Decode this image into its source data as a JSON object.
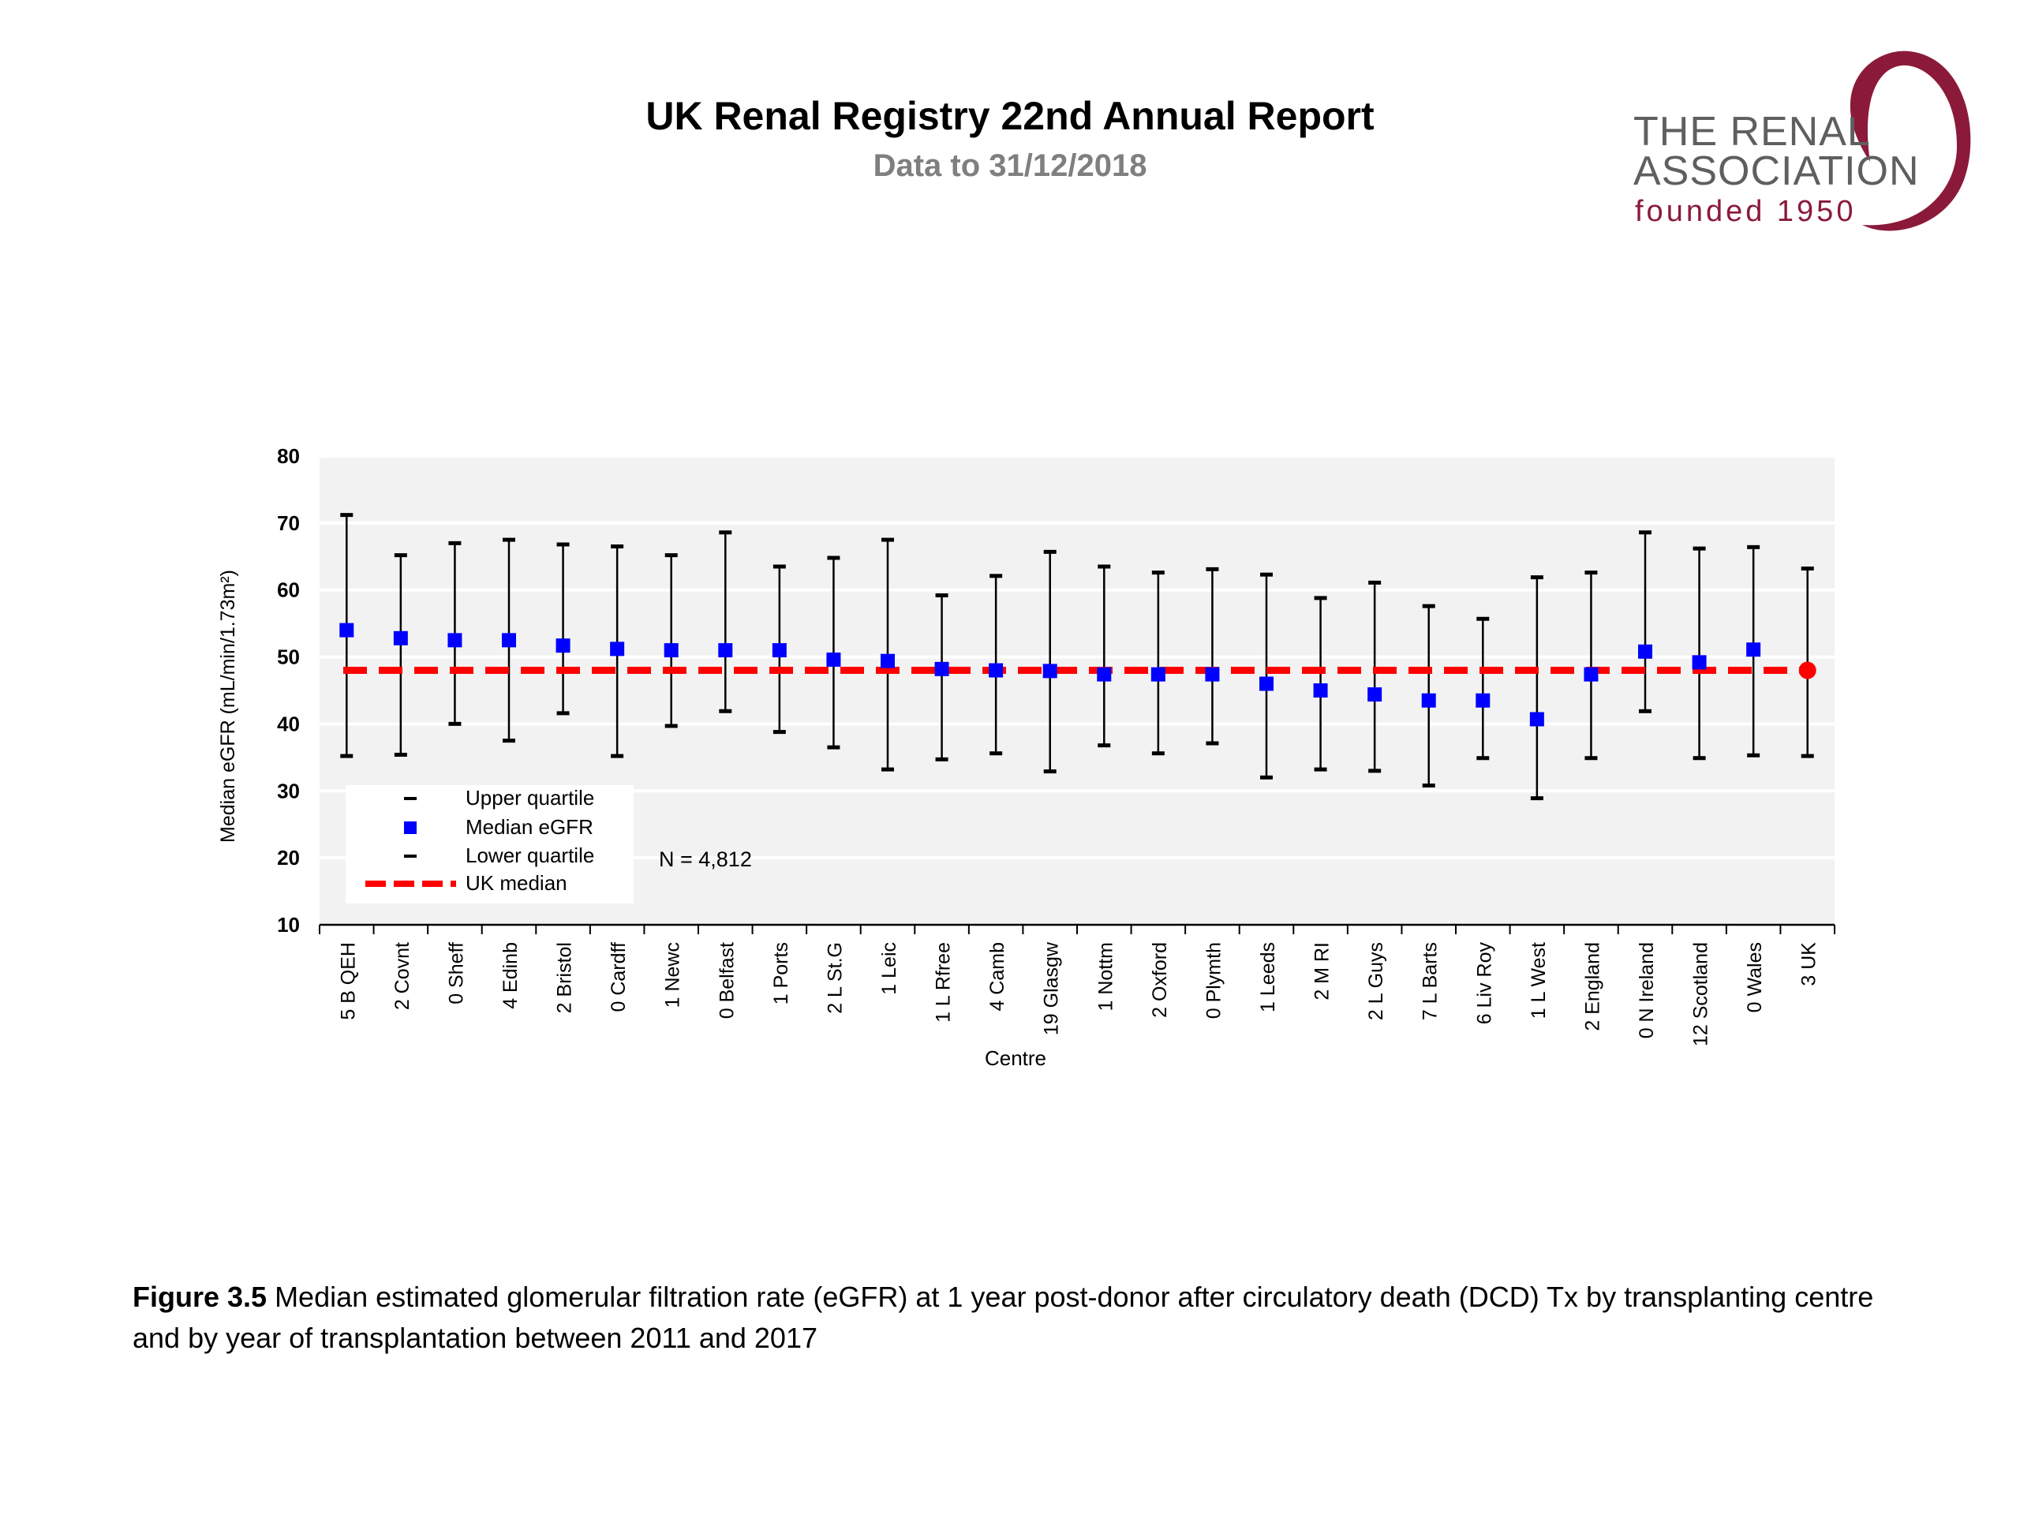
{
  "header": {
    "title": "UK Renal Registry 22nd Annual Report",
    "subtitle": "Data to 31/12/2018"
  },
  "logo": {
    "line1": "THE RENAL",
    "line2": "ASSOCIATION",
    "line3": "founded 1950"
  },
  "caption": {
    "label": "Figure 3.5",
    "text": " Median estimated glomerular filtration rate (eGFR) at 1 year post-donor after circulatory death (DCD) Tx by transplanting centre and by year of transplantation between 2011 and 2017"
  },
  "colors": {
    "median_marker": "#0000ff",
    "uk_median_line": "#ff0000",
    "error_bar": "#000000",
    "plot_background": "#f2f2f2",
    "logo_swoosh": "#8b1a3a"
  },
  "chart_data": {
    "type": "scatter",
    "xlabel": "Centre",
    "ylabel": "Median eGFR (mL/min/1.73m²)",
    "ylim": [
      10,
      80
    ],
    "yticks": [
      10,
      20,
      30,
      40,
      50,
      60,
      70,
      80
    ],
    "grid": true,
    "annotation": "N = 4,812",
    "uk_median": 48,
    "legend": {
      "placement": "bottom-left",
      "entries": [
        "Upper quartile",
        "Median eGFR",
        "Lower quartile",
        "UK median"
      ]
    },
    "categories": [
      "5 B QEH",
      "2 Covnt",
      "0 Sheff",
      "4 Edinb",
      "2 Bristol",
      "0 Cardff",
      "1 Newc",
      "0 Belfast",
      "1 Ports",
      "2 L St.G",
      "1 Leic",
      "1 L Rfree",
      "4 Camb",
      "19 Glasgw",
      "1 Nottm",
      "2 Oxford",
      "0 Plymth",
      "1 Leeds",
      "2 M RI",
      "2 L Guys",
      "7 L Barts",
      "6 Liv Roy",
      "1 L West",
      "2 England",
      "0 N Ireland",
      "12 Scotland",
      "0 Wales",
      "3 UK"
    ],
    "series": [
      {
        "name": "Median eGFR",
        "values": [
          54,
          52.8,
          52.5,
          52.5,
          51.7,
          51.2,
          51,
          51,
          51,
          49.6,
          49.4,
          48.2,
          48,
          47.9,
          47.4,
          47.4,
          47.4,
          46,
          45,
          44.4,
          43.5,
          43.5,
          40.7,
          47.4,
          50.8,
          49.2,
          51.1,
          48
        ]
      },
      {
        "name": "Upper quartile",
        "values": [
          71.2,
          65.2,
          67,
          67.5,
          66.8,
          66.5,
          65.2,
          68.6,
          63.5,
          64.8,
          67.5,
          59.2,
          62.1,
          65.7,
          63.5,
          62.6,
          63.1,
          62.3,
          58.8,
          61.1,
          57.6,
          55.7,
          61.9,
          62.6,
          68.6,
          66.2,
          66.4,
          63.2
        ]
      },
      {
        "name": "Lower quartile",
        "values": [
          35.2,
          35.4,
          40,
          37.5,
          41.6,
          35.2,
          39.7,
          41.9,
          38.8,
          36.5,
          33.2,
          34.7,
          35.6,
          32.9,
          36.8,
          35.6,
          37.1,
          32,
          33.2,
          33,
          30.8,
          34.9,
          28.9,
          34.9,
          41.9,
          34.9,
          35.3,
          35.2
        ]
      }
    ]
  }
}
